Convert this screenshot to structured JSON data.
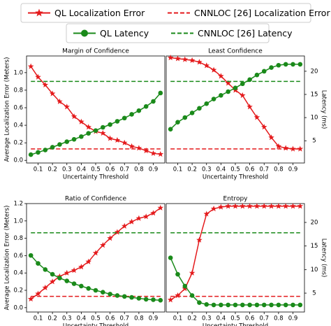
{
  "chart_data": {
    "type": "line",
    "legend": [
      {
        "name": "QL Localization Error",
        "color": "#e41a1c",
        "style": "solid",
        "marker": "star"
      },
      {
        "name": "CNNLOC [26] Localization Error",
        "color": "#e41a1c",
        "style": "dashed"
      },
      {
        "name": "QL Latency",
        "color": "#1a8a1a",
        "style": "solid",
        "marker": "circle"
      },
      {
        "name": "CNNLOC [26] Latency",
        "color": "#1a8a1a",
        "style": "dashed"
      }
    ],
    "x": [
      0.05,
      0.1,
      0.15,
      0.2,
      0.25,
      0.3,
      0.35,
      0.4,
      0.45,
      0.5,
      0.55,
      0.6,
      0.65,
      0.7,
      0.75,
      0.8,
      0.85,
      0.9,
      0.95
    ],
    "xlim": [
      0.02,
      0.98
    ],
    "xticks": [
      0.1,
      0.2,
      0.3,
      0.4,
      0.5,
      0.6,
      0.7,
      0.8,
      0.9
    ],
    "charts": [
      {
        "title": "Margin of Confidence",
        "xlabel": "Uncertainty Threshold",
        "ylabel": "Average Localization Error (Meters)",
        "ylim": [
          -0.03,
          1.19
        ],
        "yticks": [
          {
            "value": 0.0,
            "label": "0.0"
          },
          0.2,
          0.4,
          0.6,
          0.8,
          {
            "value": 1.0,
            "label": "1.0"
          }
        ],
        "y2lim": [
          0.2,
          23.3
        ],
        "series": [
          {
            "values": [
              1.07,
              0.95,
              0.86,
              0.76,
              0.67,
              0.61,
              0.5,
              0.44,
              0.38,
              0.33,
              0.31,
              0.25,
              0.23,
              0.2,
              0.16,
              0.14,
              0.11,
              0.08,
              0.07
            ]
          },
          {
            "value": 0.13
          },
          {
            "axis": "y2",
            "values": [
              2.0,
              2.5,
              3.0,
              3.6,
              4.2,
              4.8,
              5.3,
              5.9,
              6.6,
              7.2,
              7.9,
              8.5,
              9.2,
              9.9,
              10.7,
              11.5,
              12.4,
              13.5,
              15.3
            ]
          },
          {
            "axis": "y2",
            "value": 17.8
          }
        ]
      },
      {
        "title": "Least Confidence",
        "xlabel": "Uncertainty Threshold",
        "y2label": "Latency (ms)",
        "ylim": [
          -0.03,
          1.19
        ],
        "y2lim": [
          0.2,
          23.3
        ],
        "y2ticks": [
          5,
          10,
          15,
          20
        ],
        "series": [
          {
            "values": [
              1.17,
              1.16,
              1.15,
              1.14,
              1.12,
              1.08,
              1.03,
              0.96,
              0.88,
              0.8,
              0.74,
              0.61,
              0.49,
              0.38,
              0.26,
              0.16,
              0.14,
              0.13,
              0.13
            ]
          },
          {
            "value": 0.13
          },
          {
            "axis": "y2",
            "values": [
              7.5,
              9.0,
              10.0,
              11.0,
              12.0,
              13.0,
              14.0,
              14.8,
              15.6,
              16.4,
              17.3,
              18.2,
              19.2,
              20.0,
              20.8,
              21.3,
              21.5,
              21.5,
              21.5
            ]
          },
          {
            "axis": "y2",
            "value": 17.8
          }
        ]
      },
      {
        "title": "Ratio of Confidence",
        "xlabel": "Uncertainty Threshold",
        "ylabel": "Average Localization Error (Meters)",
        "ylim": [
          -0.05,
          1.2
        ],
        "yticks": [
          {
            "value": 0.0,
            "label": "0.0"
          },
          0.2,
          0.4,
          0.6,
          0.8,
          {
            "value": 1.0,
            "label": "1.0"
          },
          1.2
        ],
        "y2lim": [
          1.0,
          24.0
        ],
        "series": [
          {
            "values": [
              0.1,
              0.16,
              0.23,
              0.3,
              0.36,
              0.4,
              0.43,
              0.47,
              0.53,
              0.63,
              0.72,
              0.8,
              0.87,
              0.94,
              0.99,
              1.03,
              1.05,
              1.09,
              1.15
            ]
          },
          {
            "value": 0.13
          },
          {
            "axis": "y2",
            "values": [
              13.0,
              11.3,
              10.0,
              9.0,
              8.2,
              7.6,
              7.0,
              6.5,
              6.0,
              5.6,
              5.2,
              4.8,
              4.5,
              4.3,
              4.1,
              3.9,
              3.7,
              3.6,
              3.5
            ]
          },
          {
            "axis": "y2",
            "value": 17.8
          }
        ]
      },
      {
        "title": "Entropy",
        "xlabel": "Uncertainty Threshold",
        "y2label": "Latency (ms)",
        "ylim": [
          -0.05,
          1.2
        ],
        "y2lim": [
          1.0,
          24.0
        ],
        "y2ticks": [
          5,
          10,
          15,
          20
        ],
        "series": [
          {
            "values": [
              0.09,
              0.14,
              0.22,
              0.4,
              0.78,
              1.08,
              1.14,
              1.16,
              1.17,
              1.17,
              1.17,
              1.17,
              1.17,
              1.17,
              1.17,
              1.17,
              1.17,
              1.17,
              1.17
            ]
          },
          {
            "value": 0.13
          },
          {
            "axis": "y2",
            "values": [
              12.5,
              9.0,
              6.5,
              4.5,
              3.0,
              2.6,
              2.5,
              2.5,
              2.5,
              2.5,
              2.5,
              2.5,
              2.5,
              2.5,
              2.5,
              2.5,
              2.5,
              2.5,
              2.5
            ]
          },
          {
            "axis": "y2",
            "value": 17.8
          }
        ]
      }
    ]
  }
}
